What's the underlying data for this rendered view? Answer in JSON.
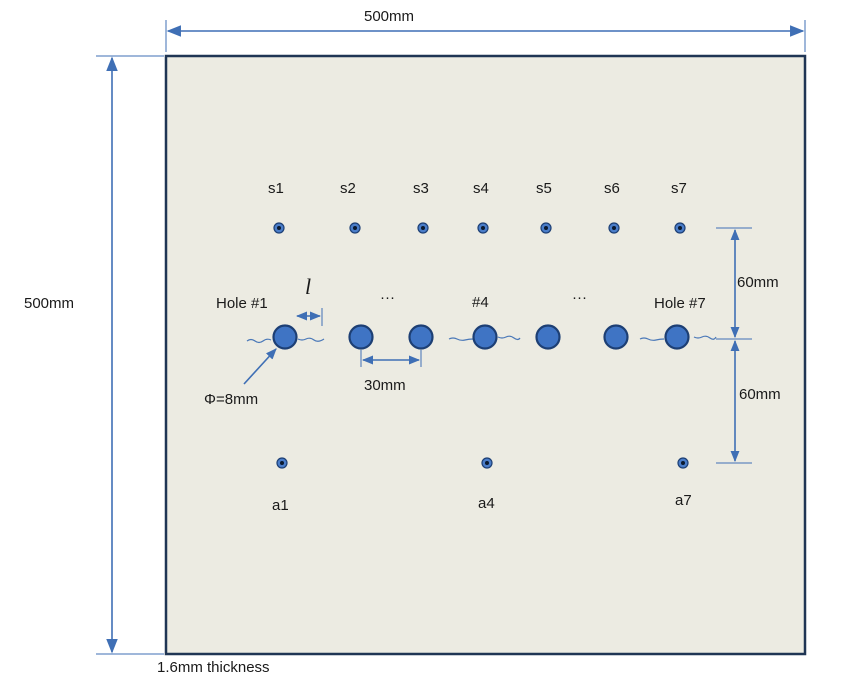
{
  "plate": {
    "fill_color": "#ecebe2",
    "border_color": "#1f3554",
    "thickness_label": "1.6mm thickness"
  },
  "dimensions": {
    "width_label": "500mm",
    "height_label": "500mm",
    "upper_offset_label": "60mm",
    "lower_offset_label": "60mm",
    "hole_spacing_label": "30mm",
    "hole_diameter_label": "Φ=8mm",
    "crack_length_label": "l"
  },
  "sensors_top": [
    "s1",
    "s2",
    "s3",
    "s4",
    "s5",
    "s6",
    "s7"
  ],
  "actuators_bottom": [
    "a1",
    "a4",
    "a7"
  ],
  "hole_labels": {
    "first": "Hole #1",
    "middle": "#4",
    "last": "Hole #7",
    "ellipsis_left": "···",
    "ellipsis_right": "···"
  },
  "colors": {
    "dimension_line": "#3f6fb5",
    "hole_fill": "#3f74c4",
    "hole_stroke": "#1d3f74"
  }
}
